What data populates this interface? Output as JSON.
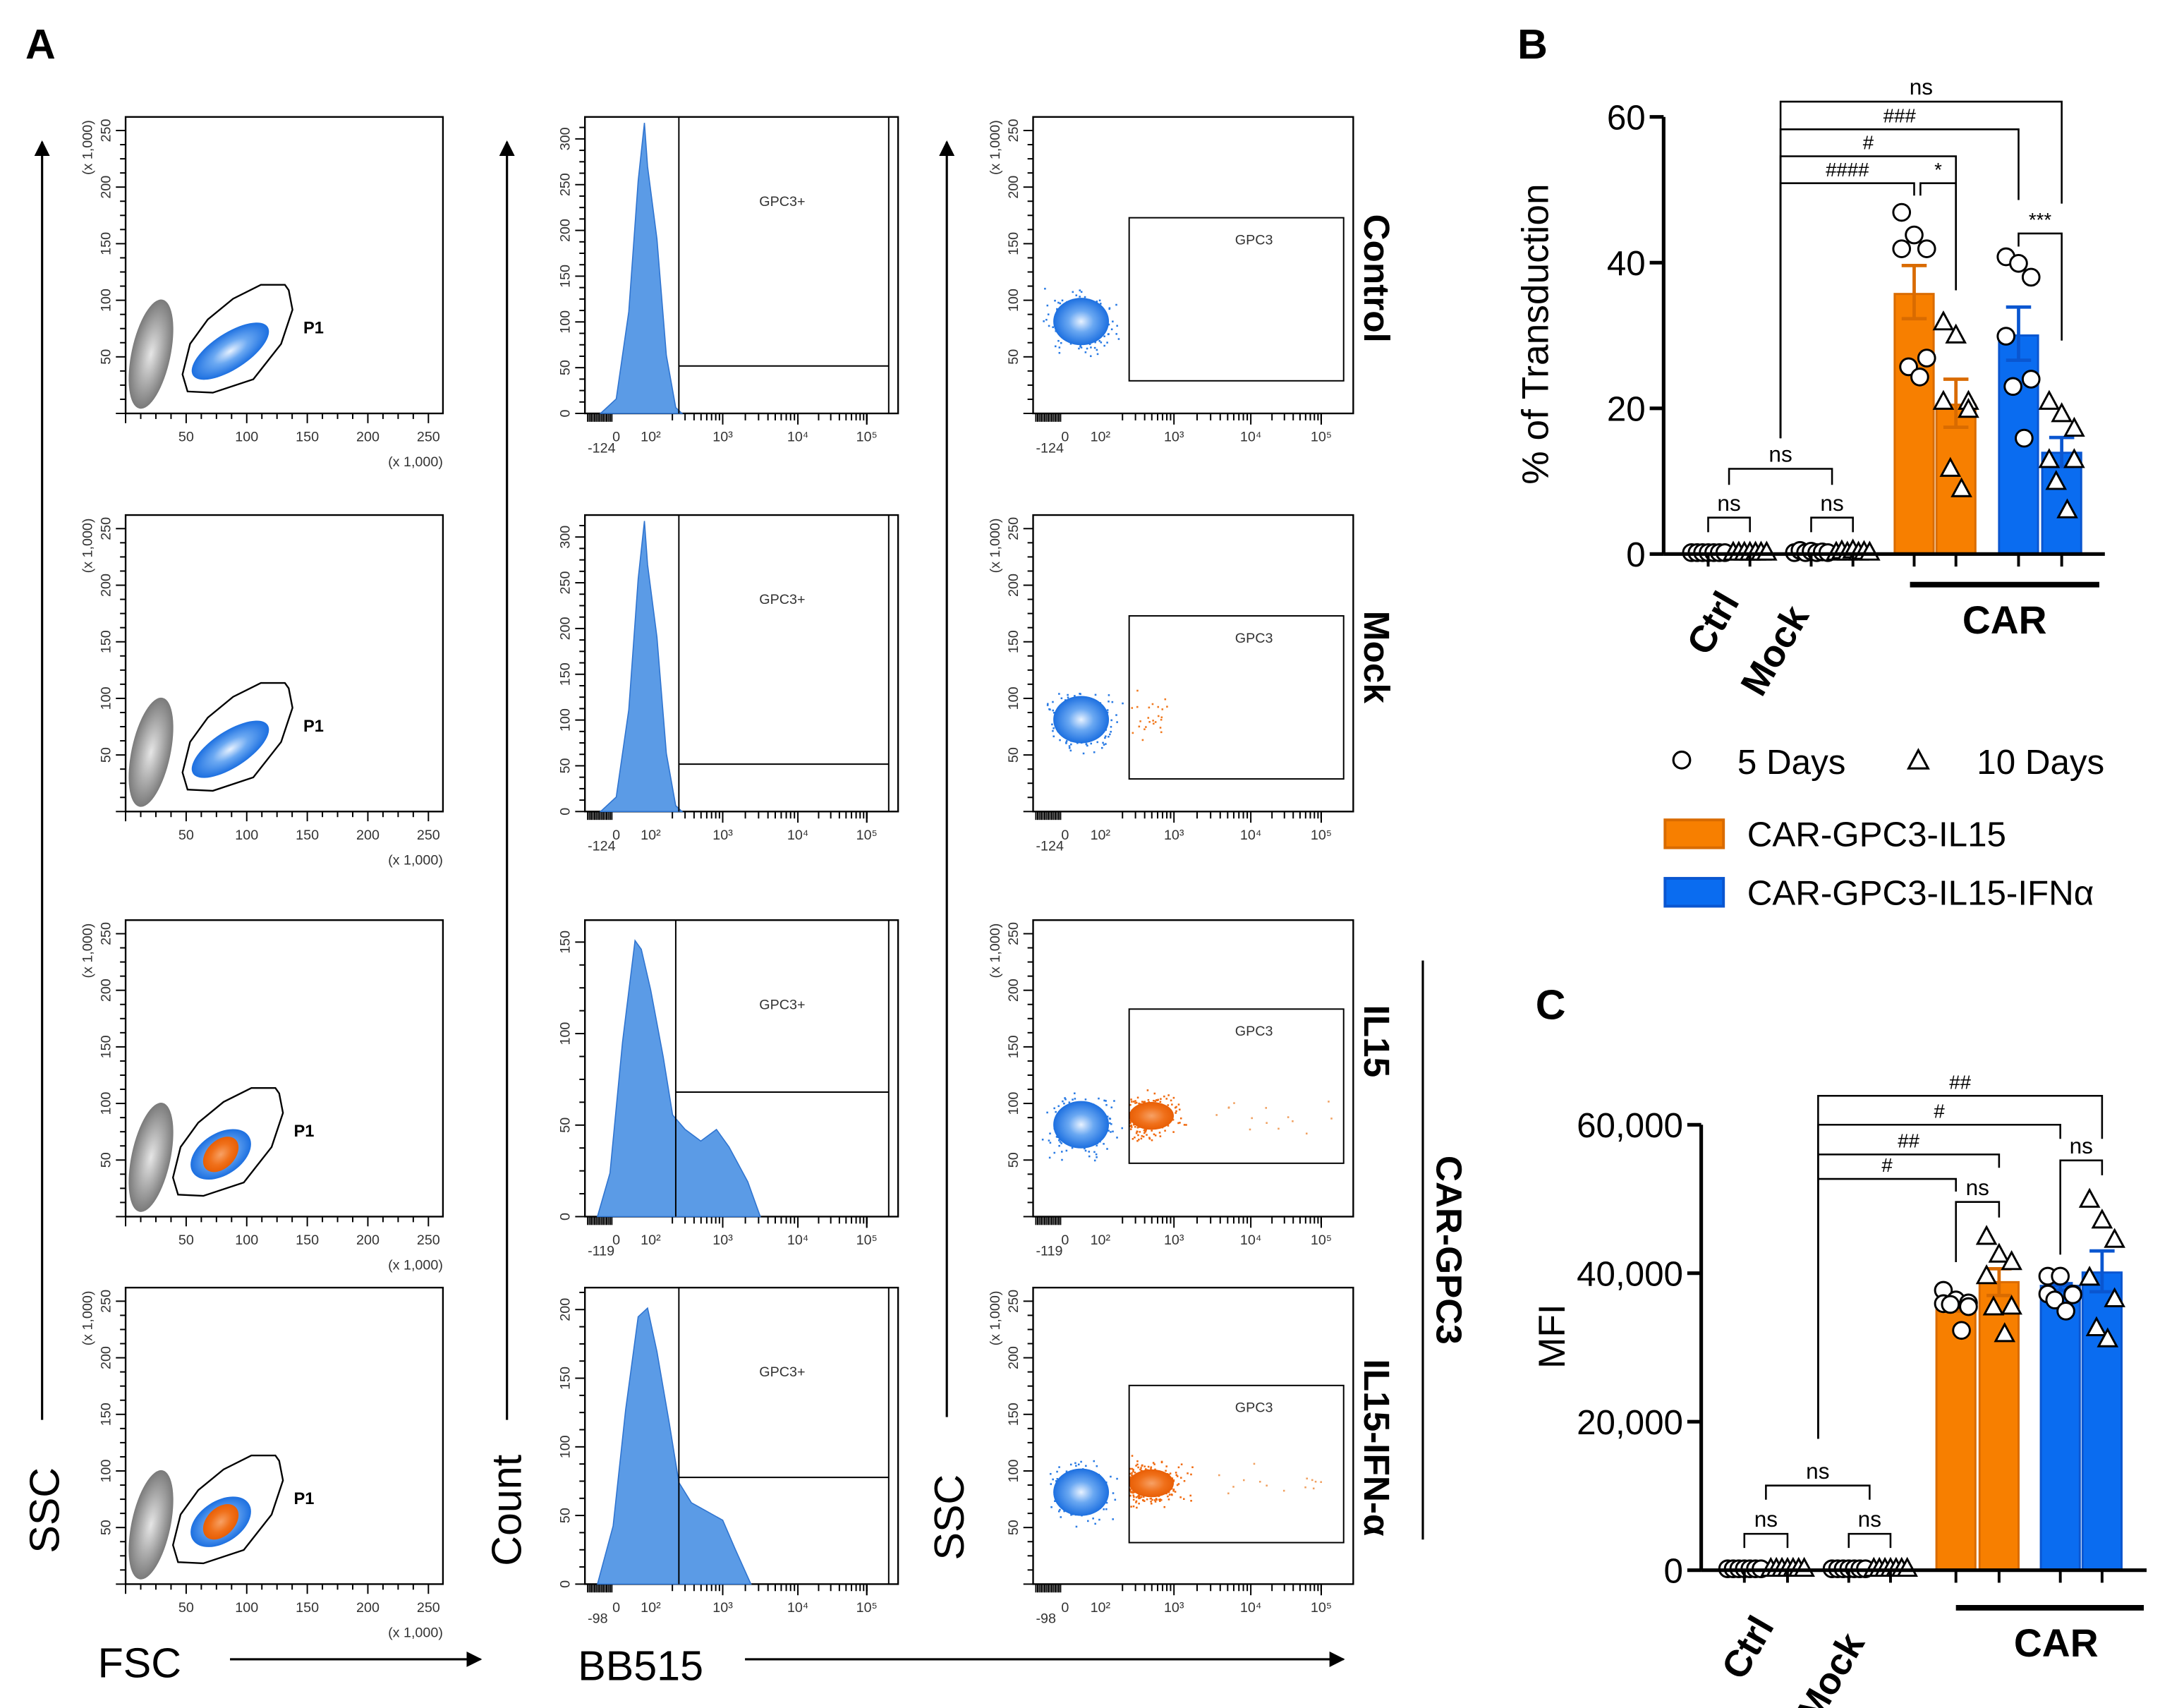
{
  "panel_labels": {
    "a": "A",
    "b": "B",
    "c": "C"
  },
  "flow": {
    "axis_labels": {
      "ssc_left": "SSC",
      "fsc": "FSC",
      "count": "Count",
      "bb515": "BB515",
      "ssc_right": "SSC"
    },
    "row_labels": [
      "Control",
      "Mock",
      "IL15",
      "IL15-IFN-α"
    ],
    "group_label": "CAR-GPC3",
    "scale_unit": "(x 1,000)",
    "scatter_ticks": [
      "50",
      "100",
      "150",
      "200",
      "250"
    ],
    "hist_y_ticks": [
      [
        "0",
        "50",
        "100",
        "150",
        "200",
        "250",
        "300"
      ],
      [
        "0",
        "50",
        "100",
        "150",
        "200",
        "250",
        "300"
      ],
      [
        "0",
        "50",
        "100",
        "150"
      ],
      [
        "0",
        "50",
        "100",
        "150",
        "200"
      ]
    ],
    "log_min_ticks": [
      "-124",
      "-124",
      "-119",
      "-98"
    ],
    "log_ticks": [
      "0",
      "10²",
      "10³",
      "10⁴",
      "10⁵"
    ],
    "gates": {
      "fsc_ssc": "P1",
      "hist": "GPC3+",
      "ssc_bb515": "GPC3"
    },
    "colors": {
      "blue_population": "#1a73e8",
      "orange_population": "#f26b0f",
      "debris": "#808080",
      "histogram": "#5b9be6"
    }
  },
  "legend": {
    "markers": [
      {
        "symbol": "circle",
        "label": "5 Days"
      },
      {
        "symbol": "triangle",
        "label": "10 Days"
      }
    ],
    "series": [
      {
        "label": "CAR-GPC3-IL15",
        "color": "#f77f00"
      },
      {
        "label": "CAR-GPC3-IL15-IFNα",
        "color": "#0a6cf0"
      }
    ]
  },
  "chart_data": [
    {
      "type": "bar",
      "panel": "B",
      "ylabel": "% of Transduction",
      "xlabel": "",
      "ylim": [
        0,
        60
      ],
      "yticks": [
        "0",
        "20",
        "40",
        "60"
      ],
      "categories": [
        "Ctrl",
        "Mock",
        "CAR"
      ],
      "controls": [
        {
          "group": "Ctrl",
          "day": "5 Days",
          "points": [
            0,
            0,
            0,
            0,
            0,
            0,
            0
          ]
        },
        {
          "group": "Ctrl",
          "day": "10 Days",
          "points": [
            0,
            0,
            0,
            0,
            0,
            0,
            0
          ]
        },
        {
          "group": "Mock",
          "day": "5 Days",
          "points": [
            0,
            0.3,
            0,
            0.2,
            0,
            0.1,
            0
          ]
        },
        {
          "group": "Mock",
          "day": "10 Days",
          "points": [
            0,
            0.2,
            0,
            0.3,
            0,
            0.1,
            0
          ]
        }
      ],
      "bars": [
        {
          "series": "CAR-GPC3-IL15",
          "day": "5 Days",
          "mean": 35.7,
          "err_low": 32.3,
          "err_high": 39.6,
          "points": [
            46.9,
            43.8,
            41.9,
            41.9,
            26.9,
            25.7,
            24.3
          ]
        },
        {
          "series": "CAR-GPC3-IL15",
          "day": "10 Days",
          "mean": 20.5,
          "err_low": 17.4,
          "err_high": 24.0,
          "points": [
            31.8,
            30.0,
            20.9,
            20.9,
            19.8,
            11.7,
            8.9
          ]
        },
        {
          "series": "CAR-GPC3-IL15-IFNα",
          "day": "5 Days",
          "mean": 30.0,
          "err_low": 26.6,
          "err_high": 33.9,
          "points": [
            40.8,
            39.9,
            38.0,
            29.9,
            24.0,
            23.0,
            15.9
          ]
        },
        {
          "series": "CAR-GPC3-IL15-IFNα",
          "day": "10 Days",
          "mean": 13.9,
          "err_low": 12.0,
          "err_high": 16.0,
          "points": [
            20.9,
            19.2,
            17.2,
            12.9,
            12.9,
            9.9,
            6.0
          ]
        }
      ],
      "comparisons": [
        {
          "label": "ns",
          "a": 1.5,
          "b": 7,
          "level": 62.1,
          "a_end": 15.9,
          "b_end": 48.1
        },
        {
          "label": "###",
          "a": 1.5,
          "b": 6,
          "level": 58.3,
          "a_end": 15.9,
          "b_end": 48.6
        },
        {
          "label": "#",
          "a": 1.5,
          "b": 5,
          "level": 54.6,
          "a_end": 15.9,
          "b_end": 36.2
        },
        {
          "label": "####",
          "a": 1.5,
          "b": 4,
          "level": 50.9,
          "a_end": 15.9,
          "b_end": 49.2
        },
        {
          "label": "*",
          "a": 4.15,
          "b": 5,
          "level": 50.9,
          "a_end": 49.2,
          "b_end": 36.2
        },
        {
          "label": "***",
          "a": 6,
          "b": 7,
          "level": 44.0,
          "a_end": 42.2,
          "b_end": 29.3
        },
        {
          "label": "ns",
          "a": 0.5,
          "b": 2.5,
          "level": 11.7,
          "a_end": 9.5,
          "b_end": 9.5
        },
        {
          "label": "ns",
          "a": 0,
          "b": 1,
          "level": 5.0,
          "a_end": 3.0,
          "b_end": 3.0
        },
        {
          "label": "ns",
          "a": 2,
          "b": 3,
          "level": 5.0,
          "a_end": 3.0,
          "b_end": 3.0
        }
      ]
    },
    {
      "type": "bar",
      "panel": "C",
      "ylabel": "MFI",
      "xlabel": "",
      "ylim": [
        0,
        60000
      ],
      "yticks": [
        "0",
        "20,000",
        "40,000",
        "60,000"
      ],
      "categories": [
        "Ctrl",
        "Mock",
        "CAR"
      ],
      "controls": [
        {
          "group": "Ctrl",
          "day": "5 Days",
          "points": [
            0,
            0,
            0,
            0,
            0,
            0,
            0
          ]
        },
        {
          "group": "Ctrl",
          "day": "10 Days",
          "points": [
            0,
            0,
            0,
            0,
            0,
            0,
            0
          ]
        },
        {
          "group": "Mock",
          "day": "5 Days",
          "points": [
            0,
            0,
            0,
            0,
            0,
            0,
            0
          ]
        },
        {
          "group": "Mock",
          "day": "10 Days",
          "points": [
            0,
            0,
            0,
            0,
            0,
            0,
            0
          ]
        }
      ],
      "bars": [
        {
          "series": "CAR-GPC3-IL15",
          "day": "5 Days",
          "mean": 35400,
          "err_low": 34900,
          "err_high": 35900,
          "points": [
            37700,
            36400,
            36000,
            35900,
            35500,
            35800,
            32300
          ]
        },
        {
          "series": "CAR-GPC3-IL15",
          "day": "10 Days",
          "mean": 38800,
          "err_low": 37000,
          "err_high": 40600,
          "points": [
            44900,
            42500,
            41500,
            39600,
            35500,
            35400,
            31800
          ]
        },
        {
          "series": "CAR-GPC3-IL15-IFNα",
          "day": "5 Days",
          "mean": 38300,
          "err_low": 37700,
          "err_high": 38600,
          "points": [
            39600,
            39600,
            37200,
            37200,
            37100,
            36400,
            34900
          ]
        },
        {
          "series": "CAR-GPC3-IL15-IFNα",
          "day": "10 Days",
          "mean": 40100,
          "err_low": 37500,
          "err_high": 43000,
          "points": [
            49900,
            47100,
            44500,
            39400,
            36500,
            32600,
            31100
          ]
        }
      ],
      "comparisons": [
        {
          "label": "##",
          "a": 1.5,
          "b": 7,
          "level": 63900,
          "a_end": 17700,
          "b_end": 58100
        },
        {
          "label": "#",
          "a": 1.5,
          "b": 6,
          "level": 60000,
          "a_end": 17700,
          "b_end": 58100
        },
        {
          "label": "##",
          "a": 1.5,
          "b": 5,
          "level": 56000,
          "a_end": 17700,
          "b_end": 54200
        },
        {
          "label": "#",
          "a": 1.5,
          "b": 4,
          "level": 52700,
          "a_end": 17700,
          "b_end": 51000
        },
        {
          "label": "ns",
          "a": 4,
          "b": 5,
          "level": 49600,
          "a_end": 41500,
          "b_end": 47500
        },
        {
          "label": "ns",
          "a": 6,
          "b": 7,
          "level": 55200,
          "a_end": 42500,
          "b_end": 53200
        },
        {
          "label": "ns",
          "a": 0.5,
          "b": 2.5,
          "level": 11400,
          "a_end": 9500,
          "b_end": 9500
        },
        {
          "label": "ns",
          "a": 0,
          "b": 1,
          "level": 4900,
          "a_end": 3000,
          "b_end": 3000
        },
        {
          "label": "ns",
          "a": 2,
          "b": 3,
          "level": 4900,
          "a_end": 3000,
          "b_end": 3000
        }
      ]
    }
  ]
}
